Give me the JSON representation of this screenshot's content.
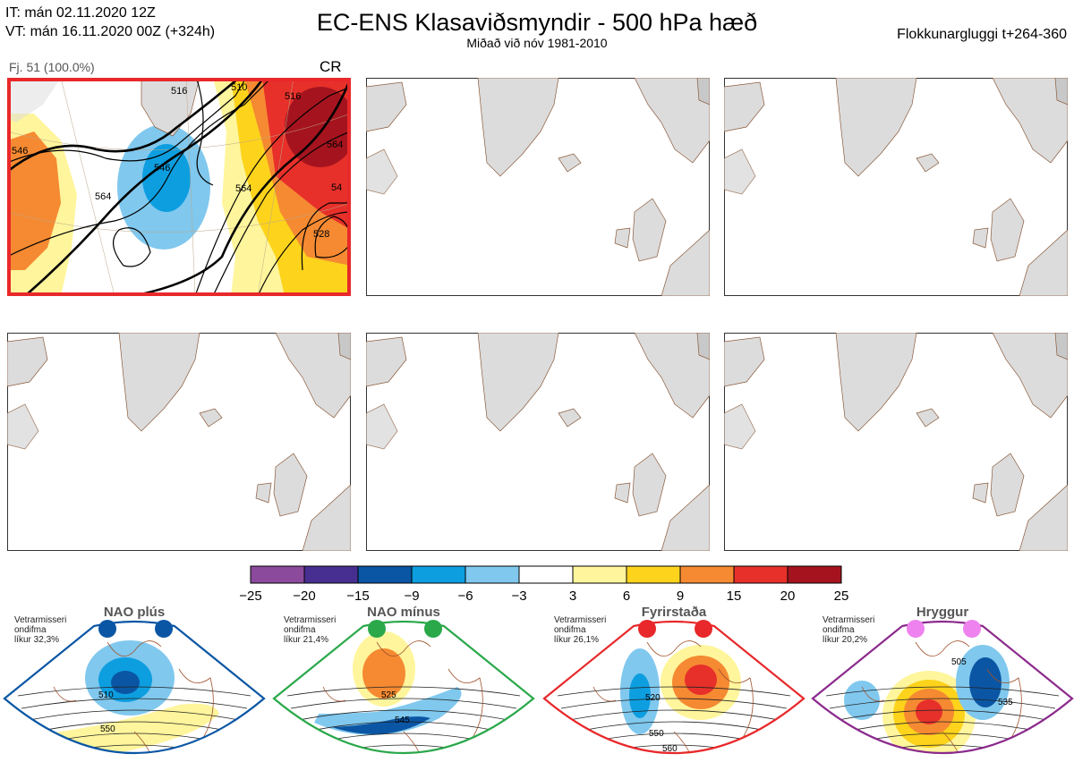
{
  "header": {
    "it_line": "IT: mán 02.11.2020 12Z",
    "vt_line": "VT: mán 16.11.2020 00Z  (+324h)",
    "title": "EC-ENS Klasaviðsmyndir - 500 hPa hæð",
    "subtitle": "Miðað við nóv 1981-2010",
    "window": "Flokkunargluggi t+264-360"
  },
  "panels": [
    {
      "label": "Fj. 51 (100.0%)",
      "regime": "CR",
      "highlight_color": "#e8282a",
      "contours": [
        "510",
        "516",
        "546",
        "564",
        "546",
        "564",
        "516",
        "564",
        "54",
        "528"
      ]
    },
    {
      "label": ""
    },
    {
      "label": ""
    },
    {
      "label": ""
    },
    {
      "label": ""
    },
    {
      "label": ""
    }
  ],
  "colorbar": {
    "ticks": [
      "−25",
      "−20",
      "−15",
      "−9",
      "−6",
      "−3",
      "3",
      "6",
      "9",
      "15",
      "20",
      "25"
    ],
    "colors": [
      "#8b4a9c",
      "#472f91",
      "#0a56a4",
      "#0d9ee0",
      "#80c8ee",
      "#ffffff",
      "#fff59c",
      "#fdd31c",
      "#f58a32",
      "#e7302a",
      "#a5141e"
    ]
  },
  "regimes": [
    {
      "name": "NAO plús",
      "season": "Vetrarmisseri",
      "desc": "ondifma",
      "prob": "líkur 32,3%",
      "color": "#0a56a4",
      "labels": [
        "510",
        "550"
      ]
    },
    {
      "name": "NAO mínus",
      "season": "Vetrarmisseri",
      "desc": "ondifma",
      "prob": "líkur 21,4%",
      "color": "#2aa84a",
      "labels": [
        "525",
        "545",
        "565"
      ]
    },
    {
      "name": "Fyrirstaða",
      "season": "Vetrarmisseri",
      "desc": "ondifma",
      "prob": "líkur 26,1%",
      "color": "#e8282a",
      "labels": [
        "520",
        "550",
        "560"
      ]
    },
    {
      "name": "Hryggur",
      "season": "Vetrarmisseri",
      "desc": "ondifma",
      "prob": "líkur 20,2%",
      "color": "#8b2a8c",
      "labels": [
        "505",
        "535",
        "560"
      ]
    }
  ]
}
